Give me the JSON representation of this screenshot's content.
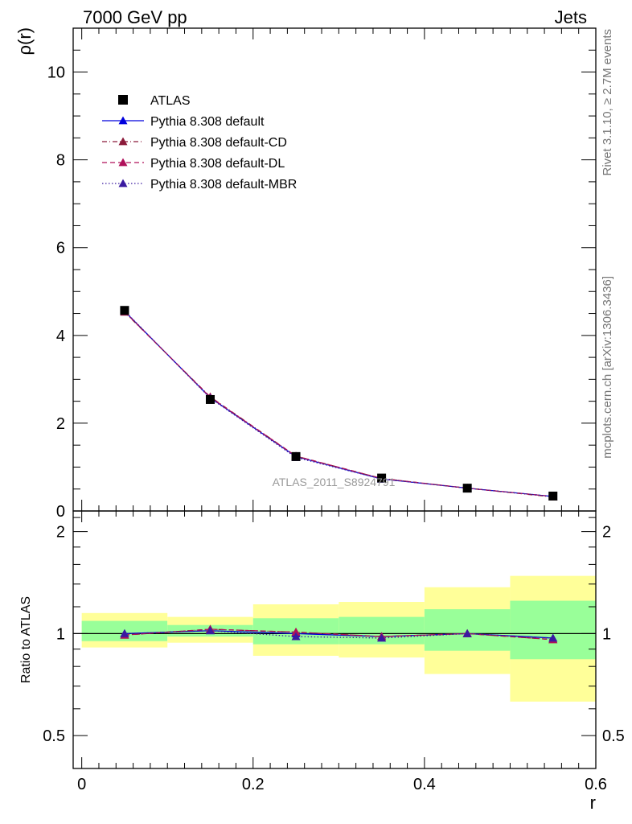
{
  "header": {
    "left": "7000 GeV pp",
    "right": "Jets"
  },
  "side_labels": {
    "rivet": "Rivet 3.1.10, ≥ 2.7M events",
    "mcplots": "mcplots.cern.ch [arXiv:1306.3436]"
  },
  "watermark": "ATLAS_2011_S8924791",
  "colors": {
    "data": "#000000",
    "default": "#0000dd",
    "cd": "#8b1a3a",
    "dl": "#b0105a",
    "mbr": "#3a1aa0",
    "band_outer": "#ffff99",
    "band_inner": "#99ff99"
  },
  "chart_data": [
    {
      "type": "line",
      "panel": "main",
      "xlabel": "",
      "ylabel": "ρ(r)",
      "xlim": [
        -0.01,
        0.6
      ],
      "ylim": [
        0,
        11
      ],
      "yticks": [
        0,
        2,
        4,
        6,
        8,
        10
      ],
      "legend_position": "top-left",
      "x": [
        0.05,
        0.15,
        0.25,
        0.35,
        0.45,
        0.55
      ],
      "series": [
        {
          "name": "ATLAS",
          "marker": "square",
          "values": [
            4.57,
            2.54,
            1.24,
            0.75,
            0.52,
            0.34
          ]
        },
        {
          "name": "Pythia 8.308 default",
          "marker": "triangle",
          "line": "solid",
          "values": [
            4.55,
            2.58,
            1.24,
            0.73,
            0.52,
            0.33
          ]
        },
        {
          "name": "Pythia 8.308 default-CD",
          "marker": "triangle",
          "line": "dashdot",
          "values": [
            4.53,
            2.6,
            1.25,
            0.74,
            0.52,
            0.32
          ]
        },
        {
          "name": "Pythia 8.308 default-DL",
          "marker": "triangle",
          "line": "dashed",
          "values": [
            4.54,
            2.59,
            1.25,
            0.74,
            0.52,
            0.33
          ]
        },
        {
          "name": "Pythia 8.308 default-MBR",
          "marker": "triangle",
          "line": "dotted",
          "values": [
            4.56,
            2.57,
            1.22,
            0.73,
            0.52,
            0.33
          ]
        }
      ]
    },
    {
      "type": "line",
      "panel": "ratio",
      "xlabel": "r",
      "ylabel": "Ratio to ATLAS",
      "xlim": [
        -0.01,
        0.6
      ],
      "ylim": [
        0.4,
        2.3
      ],
      "yticks": [
        0.5,
        1,
        2
      ],
      "xticks": [
        0,
        0.2,
        0.4,
        0.6
      ],
      "x": [
        0.05,
        0.15,
        0.25,
        0.35,
        0.45,
        0.55
      ],
      "bands": [
        {
          "x0": 0.0,
          "x1": 0.1,
          "outer": [
            0.91,
            1.15
          ],
          "inner": [
            0.95,
            1.09
          ]
        },
        {
          "x0": 0.1,
          "x1": 0.2,
          "outer": [
            0.94,
            1.12
          ],
          "inner": [
            0.98,
            1.06
          ]
        },
        {
          "x0": 0.2,
          "x1": 0.3,
          "outer": [
            0.86,
            1.22
          ],
          "inner": [
            0.93,
            1.11
          ]
        },
        {
          "x0": 0.3,
          "x1": 0.4,
          "outer": [
            0.85,
            1.24
          ],
          "inner": [
            0.93,
            1.12
          ]
        },
        {
          "x0": 0.4,
          "x1": 0.5,
          "outer": [
            0.76,
            1.37
          ],
          "inner": [
            0.89,
            1.18
          ]
        },
        {
          "x0": 0.5,
          "x1": 0.6,
          "outer": [
            0.63,
            1.48
          ],
          "inner": [
            0.84,
            1.25
          ]
        }
      ],
      "series": [
        {
          "name": "Pythia 8.308 default",
          "marker": "triangle",
          "line": "solid",
          "values": [
            1.0,
            1.02,
            1.0,
            0.98,
            1.0,
            0.97
          ]
        },
        {
          "name": "Pythia 8.308 default-CD",
          "marker": "triangle",
          "line": "dashdot",
          "values": [
            0.99,
            1.03,
            1.01,
            0.98,
            1.0,
            0.96
          ]
        },
        {
          "name": "Pythia 8.308 default-DL",
          "marker": "triangle",
          "line": "dashed",
          "values": [
            0.99,
            1.03,
            1.01,
            0.98,
            1.0,
            0.96
          ]
        },
        {
          "name": "Pythia 8.308 default-MBR",
          "marker": "triangle",
          "line": "dotted",
          "values": [
            1.0,
            1.02,
            0.98,
            0.97,
            1.0,
            0.97
          ]
        }
      ]
    }
  ]
}
